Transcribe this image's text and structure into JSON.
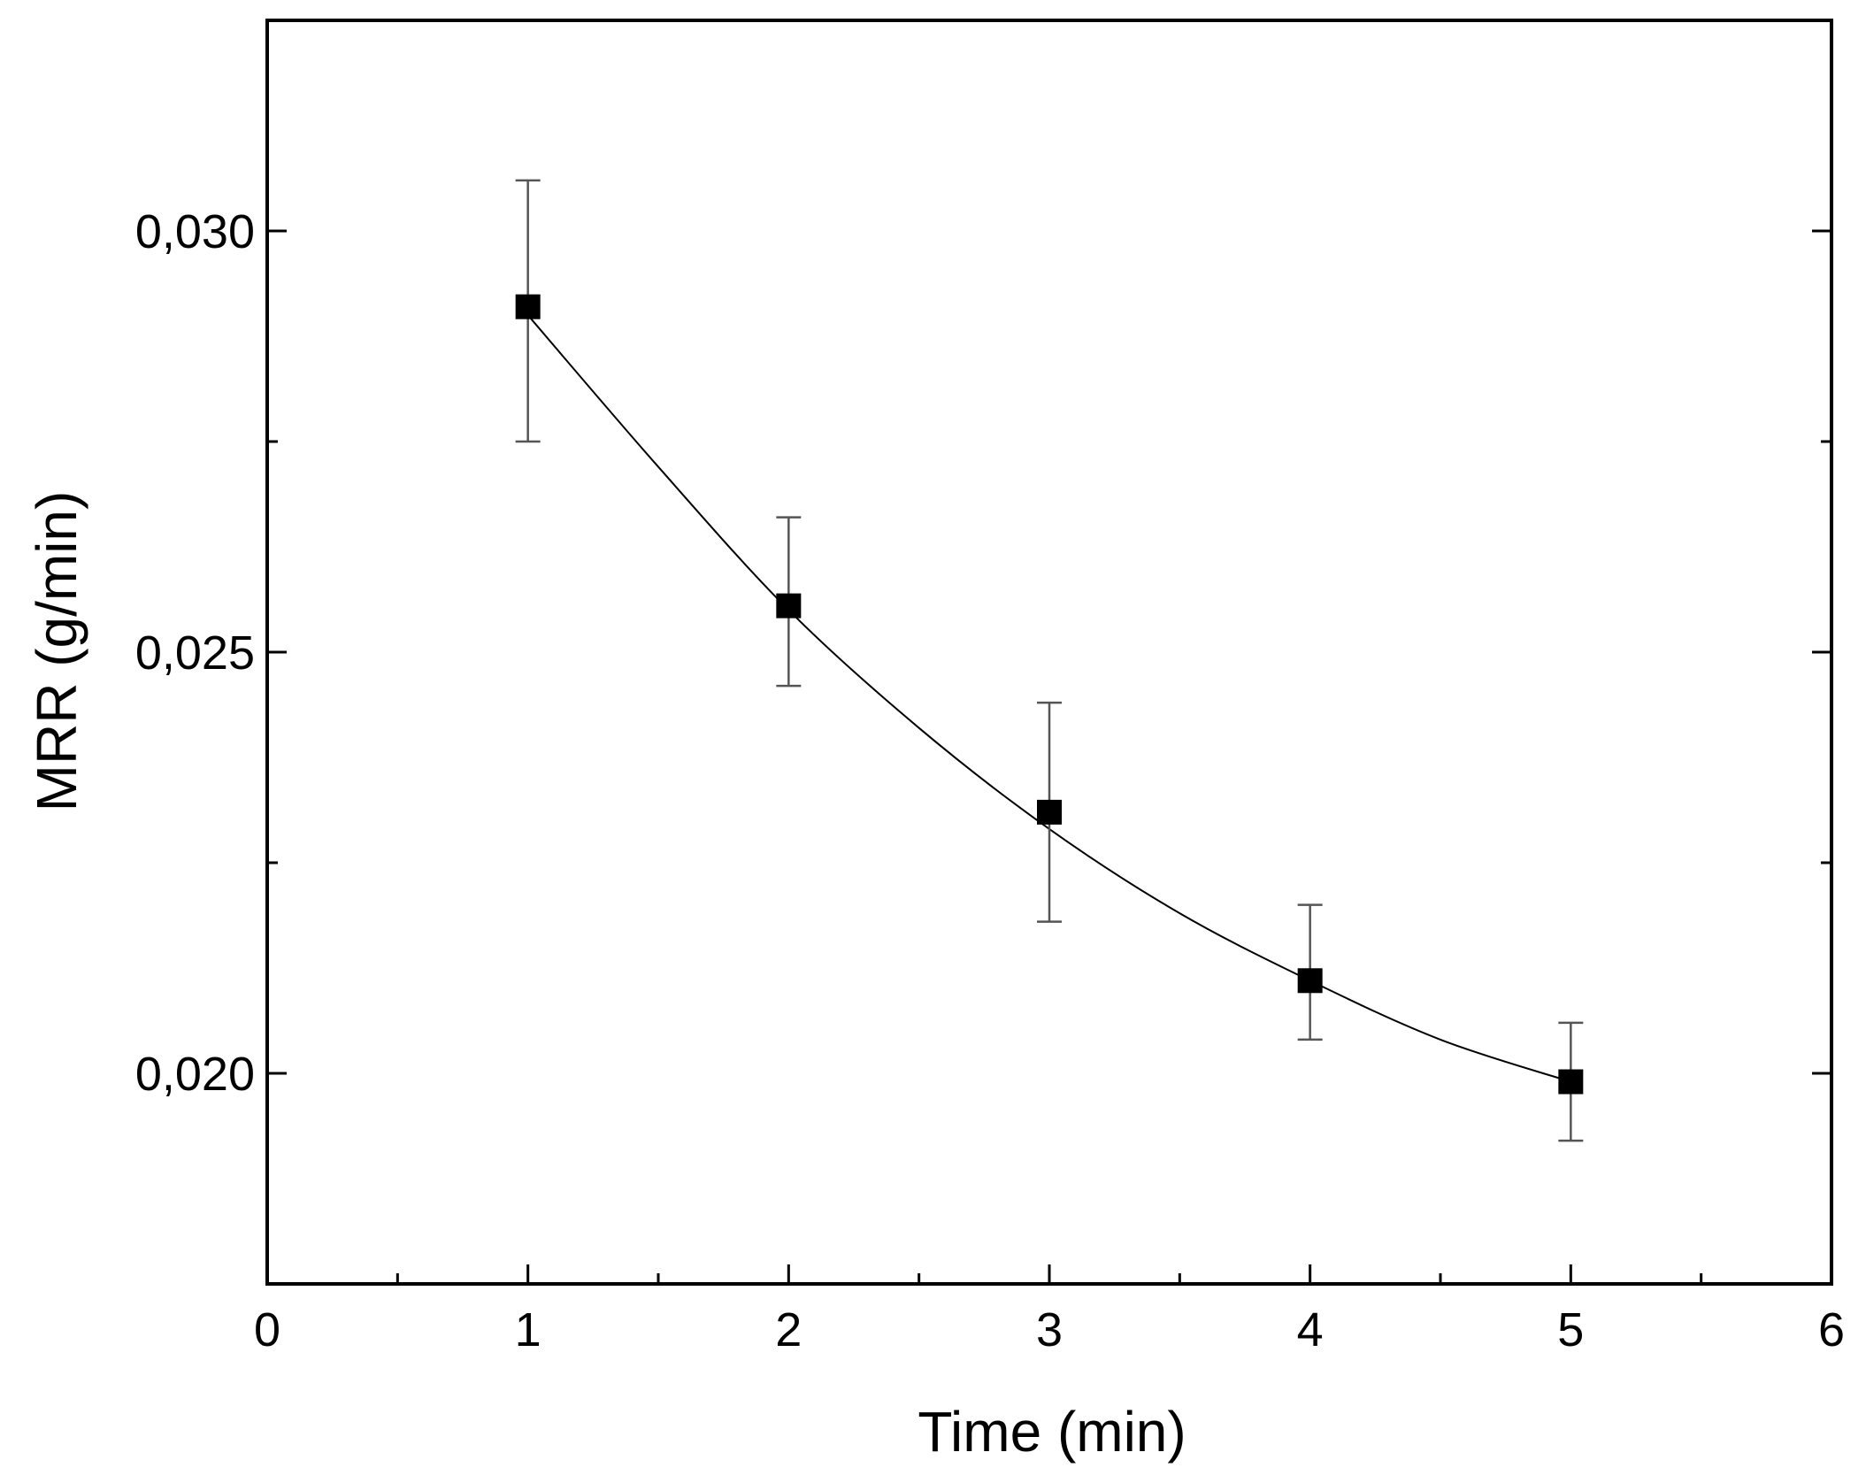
{
  "chart_data": {
    "type": "scatter",
    "title": "",
    "xlabel": "Time (min)",
    "ylabel": "MRR (g/min)",
    "xlim": [
      0,
      6
    ],
    "ylim": [
      0.0175,
      0.0325
    ],
    "x_ticks": [
      0,
      1,
      2,
      3,
      4,
      5,
      6
    ],
    "x_tick_labels": [
      "0",
      "1",
      "2",
      "3",
      "4",
      "5",
      "6"
    ],
    "x_minor_ticks": [
      0.5,
      1.5,
      2.5,
      3.5,
      4.5,
      5.5
    ],
    "y_ticks": [
      0.02,
      0.025,
      0.03
    ],
    "y_tick_labels": [
      "0,020",
      "0,025",
      "0,030"
    ],
    "y_minor_ticks": [
      0.0225,
      0.0275
    ],
    "grid": false,
    "legend": "none",
    "series": [
      {
        "name": "MRR",
        "marker": "square",
        "x": [
          1,
          2,
          3,
          4,
          5
        ],
        "y": [
          0.0291,
          0.02555,
          0.0231,
          0.0211,
          0.0199
        ],
        "error_low": [
          0.0275,
          0.0246,
          0.0218,
          0.0204,
          0.0192
        ],
        "error_high": [
          0.0306,
          0.0266,
          0.0244,
          0.022,
          0.0206
        ]
      }
    ],
    "fit_curve": {
      "x": [
        1,
        1.5,
        2,
        2.5,
        3,
        3.5,
        4,
        4.5,
        5
      ],
      "y": [
        0.029,
        0.0272,
        0.0255,
        0.0241,
        0.0229,
        0.0219,
        0.0211,
        0.0204,
        0.0199
      ]
    }
  }
}
